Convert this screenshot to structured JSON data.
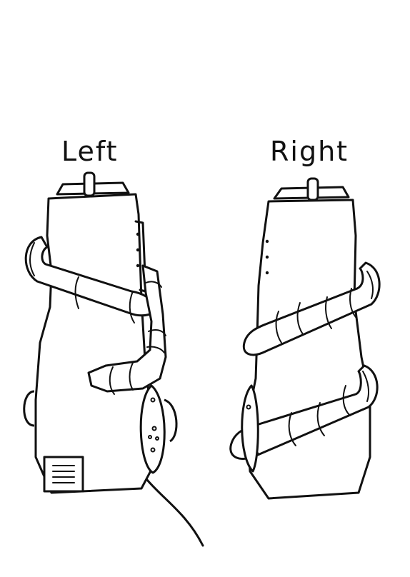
{
  "labels": {
    "left": "Left",
    "right": "Right"
  },
  "colors": {
    "ink": "#111111",
    "paper": "#ffffff"
  }
}
